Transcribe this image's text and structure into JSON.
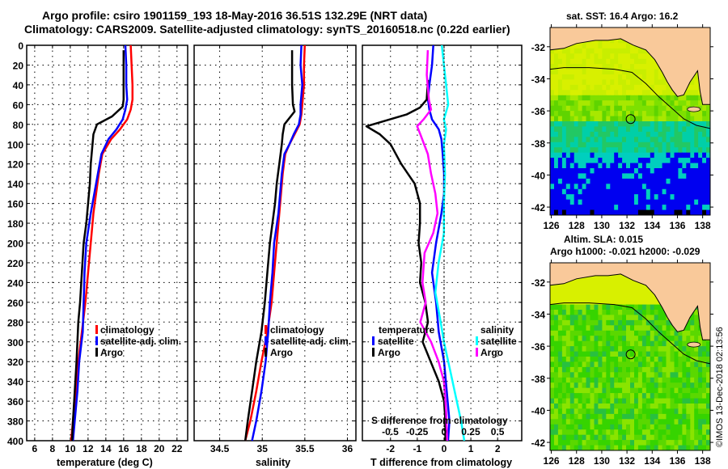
{
  "title": {
    "line1": "Argo profile: csiro 1901159_193 18-May-2016 36.51S 132.29E (NRT data)",
    "line2": "Climatology: CARS2009. Satellite-adjusted climatology: synTS_20160518.nc (0.22d earlier)"
  },
  "colors": {
    "climatology": "#ff0000",
    "satellite_adj": "#0000ff",
    "argo": "#000000",
    "sal_satellite": "#00ffff",
    "sal_argo": "#ff00ff",
    "land": "#f9c99a",
    "grid": "#000000"
  },
  "chart_data": [
    {
      "type": "line",
      "panel": "temperature",
      "xlabel": "temperature (deg C)",
      "ylabel": "",
      "xlim": [
        5.1,
        23.2
      ],
      "ylim": [
        400,
        0
      ],
      "xticks": [
        6,
        8,
        10,
        12,
        14,
        16,
        18,
        20,
        22
      ],
      "yticks": [
        0,
        20,
        40,
        60,
        80,
        100,
        120,
        140,
        160,
        180,
        200,
        220,
        240,
        260,
        280,
        300,
        320,
        340,
        360,
        380,
        400
      ],
      "grid": true,
      "legend": {
        "position": "lower-right",
        "entries": [
          "climatology",
          "satellite-adj. clim.",
          "Argo"
        ]
      },
      "series": [
        {
          "name": "climatology",
          "color": "#ff0000",
          "depth": [
            0,
            20,
            40,
            55,
            65,
            75,
            85,
            95,
            110,
            130,
            150,
            170,
            200,
            230,
            260,
            290,
            320,
            350,
            380,
            400
          ],
          "values": [
            16.8,
            16.9,
            17.0,
            17.0,
            16.8,
            16.4,
            15.6,
            14.6,
            13.6,
            13.2,
            12.9,
            12.6,
            12.3,
            12.0,
            11.7,
            11.3,
            10.9,
            10.6,
            10.3,
            10.1
          ]
        },
        {
          "name": "satellite-adj. clim.",
          "color": "#0000ff",
          "depth": [
            0,
            20,
            40,
            55,
            65,
            75,
            85,
            95,
            110,
            130,
            150,
            170,
            200,
            230,
            260,
            290,
            320,
            350,
            380,
            400
          ],
          "values": [
            16.2,
            16.3,
            16.3,
            16.4,
            16.2,
            15.9,
            15.2,
            14.3,
            13.5,
            13.1,
            12.7,
            12.3,
            11.8,
            11.6,
            11.5,
            11.4,
            11.0,
            10.8,
            10.5,
            10.3
          ]
        },
        {
          "name": "Argo",
          "color": "#000000",
          "depth": [
            5,
            20,
            40,
            55,
            62,
            72,
            80,
            90,
            100,
            120,
            140,
            160,
            180,
            200,
            230,
            260,
            280,
            300,
            320,
            350,
            380,
            400
          ],
          "values": [
            16.0,
            16.0,
            16.0,
            16.0,
            15.9,
            14.7,
            13.0,
            12.6,
            12.5,
            12.3,
            12.2,
            12.0,
            11.8,
            11.5,
            11.3,
            11.1,
            10.9,
            10.8,
            10.7,
            10.5,
            10.3,
            10.2
          ]
        }
      ]
    },
    {
      "type": "line",
      "panel": "salinity",
      "xlabel": "salinity",
      "ylabel": "",
      "xlim": [
        34.2,
        36.1
      ],
      "ylim": [
        400,
        0
      ],
      "xticks": [
        34.5,
        35,
        35.5,
        36
      ],
      "grid": true,
      "legend": {
        "position": "lower-right",
        "entries": [
          "climatology",
          "satellite-adj. clim.",
          "Argo"
        ]
      },
      "series": [
        {
          "name": "climatology",
          "color": "#ff0000",
          "depth": [
            0,
            20,
            40,
            60,
            70,
            80,
            90,
            100,
            110,
            130,
            150,
            170,
            200,
            230,
            260,
            290,
            320,
            350,
            380,
            400
          ],
          "values": [
            35.5,
            35.49,
            35.49,
            35.47,
            35.46,
            35.44,
            35.38,
            35.32,
            35.27,
            35.24,
            35.22,
            35.2,
            35.17,
            35.14,
            35.11,
            35.06,
            34.99,
            34.93,
            34.86,
            34.8
          ]
        },
        {
          "name": "satellite-adj. clim.",
          "color": "#0000ff",
          "depth": [
            0,
            20,
            40,
            60,
            70,
            80,
            90,
            100,
            110,
            130,
            150,
            170,
            200,
            230,
            260,
            290,
            320,
            350,
            380,
            400
          ],
          "values": [
            35.46,
            35.45,
            35.47,
            35.45,
            35.45,
            35.43,
            35.37,
            35.32,
            35.26,
            35.23,
            35.21,
            35.19,
            35.14,
            35.12,
            35.09,
            35.07,
            35.04,
            34.99,
            34.93,
            34.88
          ]
        },
        {
          "name": "Argo",
          "color": "#000000",
          "depth": [
            5,
            20,
            40,
            60,
            67,
            80,
            90,
            100,
            120,
            140,
            160,
            180,
            200,
            230,
            260,
            290,
            320,
            350,
            380,
            400
          ],
          "values": [
            35.35,
            35.35,
            35.35,
            35.36,
            35.38,
            35.26,
            35.24,
            35.23,
            35.2,
            35.17,
            35.15,
            35.12,
            35.09,
            35.06,
            35.03,
            34.99,
            34.93,
            34.88,
            34.83,
            34.8
          ]
        }
      ]
    },
    {
      "type": "line",
      "panel": "differences",
      "xlabel": "T difference from climatology",
      "xlabel2": "S difference from climatology",
      "xlim": [
        -3.05,
        2.9
      ],
      "x2lim": [
        -0.76,
        0.725
      ],
      "ylim": [
        400,
        0
      ],
      "xticks": [
        -2,
        -1,
        0,
        1,
        2
      ],
      "x2ticks": [
        -0.5,
        -0.25,
        0,
        0.25,
        0.5
      ],
      "x2ticklabels": [
        "-0.5",
        "-0.25",
        "0",
        "0.25",
        "0.5"
      ],
      "grid": true,
      "legend": {
        "position": "lower-center",
        "temperature_header": "temperature",
        "salinity_header": "salinity",
        "entries": [
          "satellite",
          "Argo",
          "satellite",
          "Argo"
        ]
      },
      "series": [
        {
          "name": "temperature satellite",
          "color": "#0000ff",
          "axis": "T",
          "depth": [
            0,
            20,
            40,
            55,
            65,
            75,
            85,
            95,
            110,
            130,
            150,
            170,
            200,
            230,
            260,
            290,
            320,
            350,
            380,
            400
          ],
          "values": [
            -0.4,
            -0.45,
            -0.55,
            -0.6,
            -0.55,
            -0.45,
            -0.2,
            -0.1,
            -0.05,
            0.0,
            0.0,
            -0.1,
            -0.3,
            -0.45,
            -0.3,
            -0.2,
            0.0,
            0.1,
            0.2,
            0.15
          ]
        },
        {
          "name": "temperature Argo",
          "color": "#000000",
          "axis": "T",
          "depth": [
            35,
            55,
            63,
            70,
            82,
            90,
            100,
            120,
            140,
            160,
            180,
            200,
            220,
            240,
            260,
            280,
            300,
            320,
            340,
            360,
            380,
            400
          ],
          "values": [
            -0.6,
            -0.65,
            -0.9,
            -1.4,
            -2.9,
            -2.4,
            -2.0,
            -1.6,
            -1.1,
            -0.9,
            -0.9,
            -0.95,
            -0.85,
            -0.9,
            -0.7,
            -0.6,
            -0.8,
            -0.5,
            -0.2,
            0.0,
            0.05,
            0.05
          ]
        },
        {
          "name": "salinity satellite",
          "color": "#00ffff",
          "axis": "S",
          "depth": [
            0,
            20,
            40,
            60,
            75,
            85,
            100,
            130,
            160,
            190,
            220,
            250,
            280,
            300,
            330,
            360,
            380,
            400
          ],
          "values": [
            -0.02,
            0.0,
            0.02,
            0.04,
            0.0,
            0.02,
            0.0,
            0.01,
            0.0,
            0.0,
            -0.05,
            -0.08,
            -0.03,
            0.0,
            0.06,
            0.12,
            0.16,
            0.19
          ]
        },
        {
          "name": "salinity Argo",
          "color": "#ff00ff",
          "axis": "S",
          "depth": [
            5,
            30,
            55,
            65,
            75,
            82,
            90,
            110,
            130,
            150,
            170,
            190,
            210,
            240,
            260,
            280,
            300,
            320,
            340,
            370,
            400
          ],
          "values": [
            -0.15,
            -0.16,
            -0.14,
            -0.12,
            -0.19,
            -0.25,
            -0.22,
            -0.15,
            -0.12,
            -0.08,
            -0.06,
            -0.1,
            -0.18,
            -0.2,
            -0.17,
            -0.22,
            -0.12,
            -0.05,
            0.0,
            0.02,
            0.03
          ]
        }
      ]
    },
    {
      "type": "heatmap",
      "panel": "sst-map",
      "title": "sat. SST: 16.4 Argo: 16.2",
      "xlim": [
        125.9,
        138.6
      ],
      "ylim": [
        -42.5,
        -30.8
      ],
      "xticks": [
        126,
        128,
        130,
        132,
        134,
        136,
        138
      ],
      "yticks": [
        -32,
        -34,
        -36,
        -38,
        -40,
        -42
      ],
      "marker": {
        "lon": 132.29,
        "lat": -36.51
      }
    },
    {
      "type": "heatmap",
      "panel": "sla-map",
      "title": "Altim. SLA: 0.015",
      "subtitle": "Argo h1000: -0.021 h2000: -0.029",
      "xlim": [
        125.9,
        138.6
      ],
      "ylim": [
        -42.5,
        -30.8
      ],
      "xticks": [
        126,
        128,
        130,
        132,
        134,
        136,
        138
      ],
      "yticks": [
        -32,
        -34,
        -36,
        -38,
        -40,
        -42
      ],
      "marker": {
        "lon": 132.29,
        "lat": -36.51
      }
    }
  ],
  "labels": {
    "depth_ticks": [
      "0",
      "20",
      "40",
      "60",
      "80",
      "100",
      "120",
      "140",
      "160",
      "180",
      "200",
      "220",
      "240",
      "260",
      "280",
      "300",
      "320",
      "340",
      "360",
      "380",
      "400"
    ],
    "temp_xticks": [
      "6",
      "8",
      "10",
      "12",
      "14",
      "16",
      "18",
      "20",
      "22"
    ],
    "sal_xticks": [
      "34.5",
      "35",
      "35.5",
      "36"
    ],
    "diff_xticks": [
      "-2",
      "-1",
      "0",
      "1",
      "2"
    ],
    "map_yticks": [
      "-32",
      "-34",
      "-36",
      "-38",
      "-40",
      "-42"
    ],
    "map_xticks": [
      "126",
      "128",
      "130",
      "132",
      "134",
      "136",
      "138"
    ],
    "legend_clim": "climatology",
    "legend_sat": "satellite-adj. clim.",
    "legend_argo": "Argo",
    "legend_temperature": "temperature",
    "legend_salinity": "salinity",
    "legend_satellite": "satellite",
    "credit": "©IMOS 13-Dec-2018 02:13:56"
  }
}
